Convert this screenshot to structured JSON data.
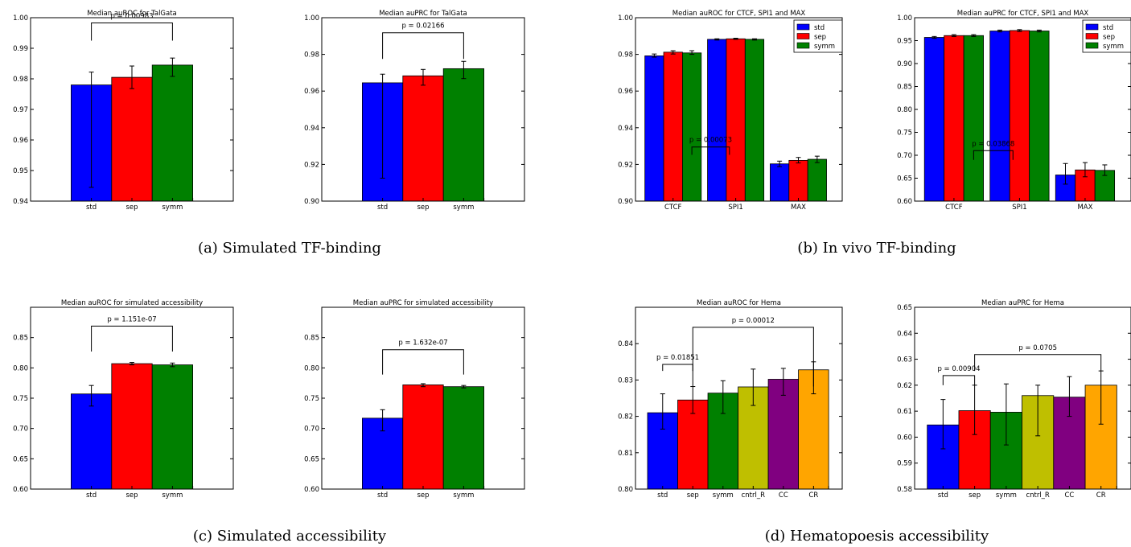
{
  "colors": {
    "std": "#0000ff",
    "sep": "#ff0000",
    "symm": "#008000",
    "cntrl_R": "#bfbf00",
    "CC": "#800080",
    "CR": "#ffa500"
  },
  "captions": {
    "a": "(a) Simulated TF-binding",
    "b": "(b) In vivo TF-binding",
    "c": "(c) Simulated accessibility",
    "d": "(d) Hematopoesis accessibility"
  },
  "chart_data": [
    {
      "id": "a1",
      "type": "bar",
      "title": "Median auROC for TalGata",
      "categories": [
        "std",
        "sep",
        "symm"
      ],
      "values": [
        0.978,
        0.9805,
        0.9845
      ],
      "errors": [
        [
          0.9445,
          0.9822
        ],
        [
          0.9768,
          0.9842
        ],
        [
          0.9808,
          0.9868
        ]
      ],
      "colors": [
        "#0000ff",
        "#ff0000",
        "#008000"
      ],
      "ylim": [
        0.94,
        1.0
      ],
      "yticks": [
        "0.94",
        "0.95",
        "0.96",
        "0.97",
        "0.98",
        "0.99",
        "1.00"
      ],
      "xlim": [
        -1,
        4
      ],
      "pvalues": [
        {
          "label": "p = 0.00983",
          "from": 0,
          "to": 2,
          "low": 0.9925,
          "high": 0.9983
        }
      ]
    },
    {
      "id": "a2",
      "type": "bar",
      "title": "Median auPRC for TalGata",
      "categories": [
        "std",
        "sep",
        "symm"
      ],
      "values": [
        0.9645,
        0.9683,
        0.9722
      ],
      "errors": [
        [
          0.9125,
          0.9692
        ],
        [
          0.9632,
          0.9718
        ],
        [
          0.9668,
          0.9762
        ]
      ],
      "colors": [
        "#0000ff",
        "#ff0000",
        "#008000"
      ],
      "ylim": [
        0.9,
        1.0
      ],
      "yticks": [
        "0.90",
        "0.92",
        "0.94",
        "0.96",
        "0.98",
        "1.00"
      ],
      "xlim": [
        -1,
        4
      ],
      "pvalues": [
        {
          "label": "p = 0.02166",
          "from": 0,
          "to": 2,
          "low": 0.9775,
          "high": 0.9918
        }
      ]
    },
    {
      "id": "b1",
      "type": "bar",
      "title": "Median auROC for CTCF, SPI1 and MAX",
      "categories": [
        "CTCF",
        "SPI1",
        "MAX"
      ],
      "series": [
        {
          "name": "std",
          "values": [
            0.9792,
            0.9882,
            0.9203
          ]
        },
        {
          "name": "sep",
          "values": [
            0.9812,
            0.9885,
            0.9222
          ]
        },
        {
          "name": "symm",
          "values": [
            0.9808,
            0.9882,
            0.9228
          ]
        }
      ],
      "errors": [
        [
          [
            0.9785,
            0.9802
          ],
          [
            0.9878,
            0.9885
          ],
          [
            0.9188,
            0.9218
          ]
        ],
        [
          [
            0.9802,
            0.982
          ],
          [
            0.9882,
            0.9888
          ],
          [
            0.9208,
            0.9238
          ]
        ],
        [
          [
            0.98,
            0.982
          ],
          [
            0.9878,
            0.9885
          ],
          [
            0.921,
            0.9245
          ]
        ]
      ],
      "ylim": [
        0.9,
        1.0
      ],
      "yticks": [
        "0.90",
        "0.92",
        "0.94",
        "0.96",
        "0.98",
        "1.00"
      ],
      "xlim": [
        -0.15,
        3.15
      ],
      "legend": "top-right",
      "pvalues": [
        {
          "label": "p = 0.00073",
          "from": 2,
          "to": 4,
          "low": 0.9252,
          "high": 0.9295
        }
      ]
    },
    {
      "id": "b2",
      "type": "bar",
      "title": "Median auPRC for CTCF, SPI1 and MAX",
      "categories": [
        "CTCF",
        "SPI1",
        "MAX"
      ],
      "series": [
        {
          "name": "std",
          "values": [
            0.957,
            0.971,
            0.657
          ]
        },
        {
          "name": "sep",
          "values": [
            0.961,
            0.972,
            0.668
          ]
        },
        {
          "name": "symm",
          "values": [
            0.961,
            0.971,
            0.667
          ]
        }
      ],
      "errors": [
        [
          [
            0.955,
            0.959
          ],
          [
            0.969,
            0.973
          ],
          [
            0.637,
            0.682
          ]
        ],
        [
          [
            0.959,
            0.963
          ],
          [
            0.97,
            0.974
          ],
          [
            0.653,
            0.684
          ]
        ],
        [
          [
            0.959,
            0.963
          ],
          [
            0.969,
            0.973
          ],
          [
            0.656,
            0.679
          ]
        ]
      ],
      "ylim": [
        0.6,
        1.0
      ],
      "yticks": [
        "0.60",
        "0.65",
        "0.70",
        "0.75",
        "0.80",
        "0.85",
        "0.90",
        "0.95",
        "1.00"
      ],
      "xlim": [
        -0.15,
        3.15
      ],
      "legend": "top-right",
      "pvalues": [
        {
          "label": "p = 0.03868",
          "from": 2,
          "to": 4,
          "low": 0.69,
          "high": 0.71
        }
      ]
    },
    {
      "id": "c1",
      "type": "bar",
      "title": "Median auROC for simulated accessibility",
      "categories": [
        "std",
        "sep",
        "symm"
      ],
      "values": [
        0.757,
        0.807,
        0.805
      ],
      "errors": [
        [
          0.737,
          0.771
        ],
        [
          0.805,
          0.809
        ],
        [
          0.802,
          0.808
        ]
      ],
      "colors": [
        "#0000ff",
        "#ff0000",
        "#008000"
      ],
      "ylim": [
        0.6,
        0.9
      ],
      "yticks": [
        "0.60",
        "0.65",
        "0.70",
        "0.75",
        "0.80",
        "0.85"
      ],
      "xlim": [
        -1,
        4
      ],
      "pvalues": [
        {
          "label": "p = 1.151e-07",
          "from": 0,
          "to": 2,
          "low": 0.827,
          "high": 0.869
        }
      ]
    },
    {
      "id": "c2",
      "type": "bar",
      "title": "Median auPRC for simulated accessibility",
      "categories": [
        "std",
        "sep",
        "symm"
      ],
      "values": [
        0.717,
        0.772,
        0.769
      ],
      "errors": [
        [
          0.696,
          0.731
        ],
        [
          0.769,
          0.774
        ],
        [
          0.767,
          0.771
        ]
      ],
      "colors": [
        "#0000ff",
        "#ff0000",
        "#008000"
      ],
      "ylim": [
        0.6,
        0.9
      ],
      "yticks": [
        "0.60",
        "0.65",
        "0.70",
        "0.75",
        "0.80",
        "0.85"
      ],
      "xlim": [
        -1,
        4
      ],
      "pvalues": [
        {
          "label": "p = 1.632e-07",
          "from": 0,
          "to": 2,
          "low": 0.789,
          "high": 0.83
        }
      ]
    },
    {
      "id": "d1",
      "type": "bar",
      "title": "Median auROC for Hema",
      "categories": [
        "std",
        "sep",
        "symm",
        "cntrl_R",
        "CC",
        "CR"
      ],
      "values": [
        0.821,
        0.8245,
        0.8264,
        0.8281,
        0.8302,
        0.8328
      ],
      "errors": [
        [
          0.8165,
          0.8262
        ],
        [
          0.8208,
          0.8282
        ],
        [
          0.8208,
          0.8298
        ],
        [
          0.823,
          0.833
        ],
        [
          0.8258,
          0.8332
        ],
        [
          0.8262,
          0.835
        ]
      ],
      "colors": [
        "#0000ff",
        "#ff0000",
        "#008000",
        "#bfbf00",
        "#800080",
        "#ffa500"
      ],
      "ylim": [
        0.8,
        0.85
      ],
      "yticks": [
        "0.80",
        "0.81",
        "0.82",
        "0.83",
        "0.84"
      ],
      "xlim": [
        -0.4,
        6.45
      ],
      "pvalues": [
        {
          "label": "p = 0.01851",
          "from": 0,
          "to": 1,
          "low": 0.8325,
          "high": 0.8343
        },
        {
          "label": "p = 0.00012",
          "from": 1,
          "to": 5,
          "low": 0.8282,
          "high": 0.8445
        }
      ]
    },
    {
      "id": "d2",
      "type": "bar",
      "title": "Median auPRC for Hema",
      "categories": [
        "std",
        "sep",
        "symm",
        "cntrl_R",
        "CC",
        "CR"
      ],
      "values": [
        0.6047,
        0.6102,
        0.6096,
        0.616,
        0.6154,
        0.62
      ],
      "errors": [
        [
          0.5955,
          0.6145
        ],
        [
          0.601,
          0.62
        ],
        [
          0.597,
          0.6205
        ],
        [
          0.6005,
          0.62
        ],
        [
          0.608,
          0.6233
        ],
        [
          0.605,
          0.6255
        ]
      ],
      "colors": [
        "#0000ff",
        "#ff0000",
        "#008000",
        "#bfbf00",
        "#800080",
        "#ffa500"
      ],
      "ylim": [
        0.58,
        0.65
      ],
      "yticks": [
        "0.58",
        "0.59",
        "0.60",
        "0.61",
        "0.62",
        "0.63",
        "0.64",
        "0.65"
      ],
      "xlim": [
        -0.4,
        6.45
      ],
      "pvalues": [
        {
          "label": "p = 0.00904",
          "from": 0,
          "to": 1,
          "low": 0.62,
          "high": 0.6237
        },
        {
          "label": "p = 0.0705",
          "from": 1,
          "to": 5,
          "low": 0.6255,
          "high": 0.6318
        }
      ]
    }
  ]
}
